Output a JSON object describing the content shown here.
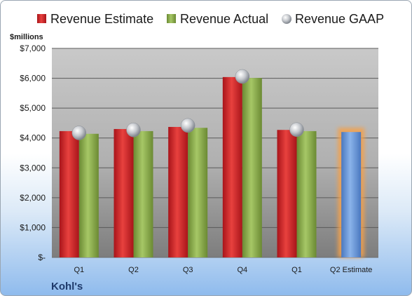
{
  "chart_data": {
    "type": "bar",
    "company": "Kohl's",
    "unit_label": "$millions",
    "categories": [
      "Q1",
      "Q2",
      "Q3",
      "Q4",
      "Q1",
      "Q2 Estimate"
    ],
    "series": [
      {
        "name": "Revenue Estimate",
        "kind": "bar",
        "color": "#d42a2a",
        "values": [
          4230,
          4300,
          4370,
          6040,
          4270,
          null
        ]
      },
      {
        "name": "Revenue Actual",
        "kind": "bar",
        "color": "#8db04e",
        "values": [
          4140,
          4230,
          4340,
          6010,
          4230,
          null
        ]
      },
      {
        "name": "Revenue GAAP",
        "kind": "marker",
        "color": "#b8bcc4",
        "values": [
          4170,
          4270,
          4420,
          6060,
          4280,
          null
        ]
      },
      {
        "name": "",
        "kind": "bar",
        "color": "#6a99dd",
        "values": [
          null,
          null,
          null,
          null,
          null,
          4200
        ]
      }
    ],
    "y_ticks": [
      0,
      1000,
      2000,
      3000,
      4000,
      5000,
      6000,
      7000
    ],
    "y_tick_labels": [
      "$-",
      "$1,000",
      "$2,000",
      "$3,000",
      "$4,000",
      "$5,000",
      "$6,000",
      "$7,000"
    ],
    "ylim": [
      0,
      7000
    ],
    "grid": true,
    "legend_position": "top"
  }
}
